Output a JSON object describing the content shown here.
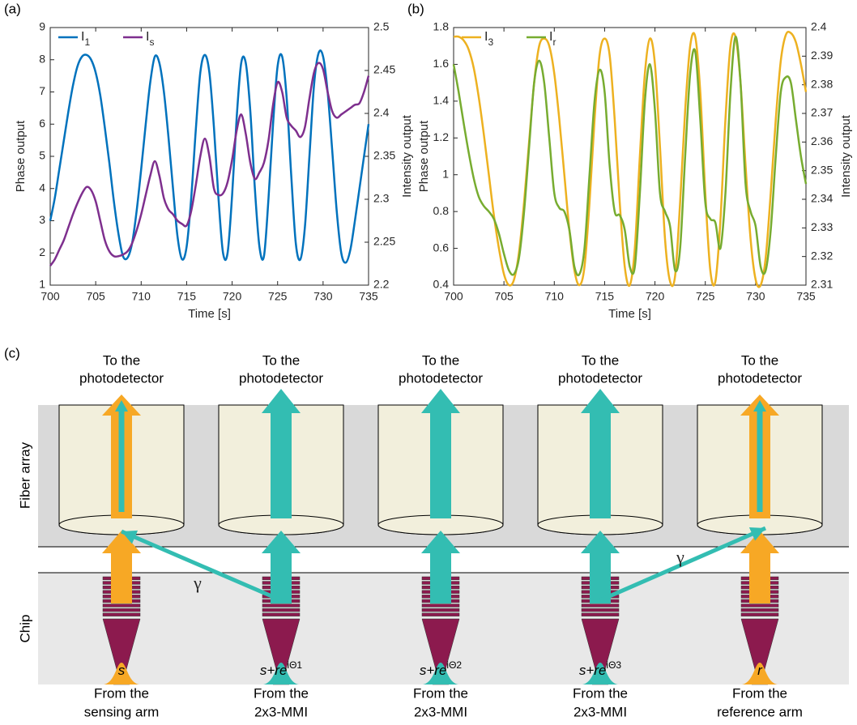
{
  "chart_data": [
    {
      "type": "line",
      "panel_label": "(a)",
      "x_label": "Time [s]",
      "y_label": "Phase output",
      "y2_label": "Intensity output",
      "x": [
        700,
        700.5,
        701,
        701.5,
        702,
        702.5,
        703,
        703.5,
        704,
        704.5,
        705,
        705.5,
        706,
        706.5,
        707,
        707.5,
        708,
        708.5,
        709,
        709.5,
        710,
        710.5,
        711,
        711.5,
        712,
        712.5,
        713,
        713.5,
        714,
        714.5,
        715,
        715.5,
        716,
        716.5,
        717,
        717.5,
        718,
        718.5,
        719,
        719.5,
        720,
        720.5,
        721,
        721.5,
        722,
        722.5,
        723,
        723.5,
        724,
        724.5,
        725,
        725.5,
        726,
        726.5,
        727,
        727.5,
        728,
        728.5,
        729,
        729.5,
        730,
        730.5,
        731,
        731.5,
        732,
        732.5,
        733,
        733.5,
        734,
        734.5,
        735
      ],
      "series": [
        {
          "name": "I1",
          "color": "#0072bd",
          "values": [
            3.0,
            3.7,
            4.6,
            5.5,
            6.4,
            7.2,
            7.8,
            8.1,
            8.15,
            8.0,
            7.6,
            6.9,
            5.9,
            4.8,
            3.6,
            2.6,
            1.9,
            1.85,
            2.3,
            3.3,
            4.6,
            6.0,
            7.3,
            8.1,
            7.9,
            7.0,
            5.6,
            4.0,
            2.5,
            1.8,
            2.2,
            3.7,
            5.8,
            7.6,
            8.15,
            7.6,
            5.9,
            3.7,
            2.0,
            2.0,
            3.8,
            6.2,
            7.9,
            7.9,
            6.4,
            4.0,
            2.2,
            1.9,
            3.7,
            6.0,
            7.8,
            8.1,
            6.8,
            4.4,
            2.3,
            1.8,
            2.8,
            5.0,
            7.2,
            8.2,
            8.1,
            7.0,
            5.2,
            3.3,
            2.0,
            1.7,
            2.1,
            3.0,
            4.0,
            5.0,
            6.0
          ]
        },
        {
          "name": "Is",
          "color": "#7e2f8e",
          "values": [
            1.6,
            1.8,
            2.1,
            2.4,
            2.8,
            3.2,
            3.55,
            3.85,
            4.05,
            3.95,
            3.6,
            3.0,
            2.4,
            2.05,
            1.9,
            1.9,
            1.95,
            2.05,
            2.3,
            2.7,
            3.2,
            3.8,
            4.4,
            4.85,
            4.4,
            3.7,
            3.35,
            3.2,
            3.0,
            2.9,
            2.85,
            3.3,
            4.1,
            5.0,
            5.55,
            5.0,
            4.0,
            3.8,
            3.85,
            4.2,
            4.9,
            5.8,
            6.3,
            5.7,
            4.8,
            4.3,
            4.5,
            4.8,
            5.5,
            6.6,
            7.3,
            7.0,
            6.2,
            5.95,
            5.8,
            5.6,
            5.9,
            6.8,
            7.6,
            7.9,
            7.7,
            7.0,
            6.4,
            6.2,
            6.3,
            6.4,
            6.5,
            6.6,
            6.65,
            7.0,
            7.5
          ]
        }
      ],
      "xlim": [
        700,
        735
      ],
      "xticks": [
        700,
        705,
        710,
        715,
        720,
        725,
        730,
        735
      ],
      "ylim": [
        1,
        9
      ],
      "yticks": [
        1,
        2,
        3,
        4,
        5,
        6,
        7,
        8,
        9
      ],
      "y2lim": [
        2.2,
        2.5
      ],
      "y2ticks": [
        2.2,
        2.25,
        2.3,
        2.35,
        2.4,
        2.45,
        2.5
      ],
      "legend": "upper left"
    },
    {
      "type": "line",
      "panel_label": "(b)",
      "x_label": "Time [s]",
      "y_label": "Phase output",
      "y2_label": "Intensity output",
      "x": [
        700,
        700.5,
        701,
        701.5,
        702,
        702.5,
        703,
        703.5,
        704,
        704.5,
        705,
        705.5,
        706,
        706.5,
        707,
        707.5,
        708,
        708.5,
        709,
        709.5,
        710,
        710.5,
        711,
        711.5,
        712,
        712.5,
        713,
        713.5,
        714,
        714.5,
        715,
        715.5,
        716,
        716.5,
        717,
        717.5,
        718,
        718.5,
        719,
        719.5,
        720,
        720.5,
        721,
        721.5,
        722,
        722.5,
        723,
        723.5,
        724,
        724.5,
        725,
        725.5,
        726,
        726.5,
        727,
        727.5,
        728,
        728.5,
        729,
        729.5,
        730,
        730.5,
        731,
        731.5,
        732,
        732.5,
        733,
        733.5,
        734,
        734.5,
        735
      ],
      "series": [
        {
          "name": "I3",
          "color": "#edb120",
          "values": [
            1.75,
            1.75,
            1.73,
            1.68,
            1.58,
            1.42,
            1.22,
            1.0,
            0.78,
            0.6,
            0.46,
            0.4,
            0.43,
            0.58,
            0.85,
            1.18,
            1.5,
            1.7,
            1.74,
            1.7,
            1.55,
            1.3,
            1.0,
            0.7,
            0.48,
            0.4,
            0.5,
            0.85,
            1.3,
            1.65,
            1.74,
            1.65,
            1.3,
            0.85,
            0.5,
            0.4,
            0.6,
            1.1,
            1.55,
            1.74,
            1.6,
            1.15,
            0.65,
            0.42,
            0.45,
            0.85,
            1.35,
            1.7,
            1.75,
            1.45,
            0.9,
            0.48,
            0.42,
            0.75,
            1.3,
            1.7,
            1.75,
            1.5,
            1.05,
            0.65,
            0.43,
            0.4,
            0.55,
            0.9,
            1.3,
            1.62,
            1.76,
            1.77,
            1.72,
            1.6,
            1.45
          ]
        },
        {
          "name": "Ir",
          "color": "#77ac30",
          "values": [
            1.6,
            1.45,
            1.28,
            1.12,
            0.98,
            0.88,
            0.83,
            0.8,
            0.76,
            0.68,
            0.57,
            0.48,
            0.46,
            0.55,
            0.8,
            1.15,
            1.5,
            1.62,
            1.5,
            1.2,
            0.9,
            0.82,
            0.8,
            0.7,
            0.5,
            0.46,
            0.6,
            1.0,
            1.4,
            1.57,
            1.45,
            1.05,
            0.8,
            0.78,
            0.7,
            0.5,
            0.5,
            0.9,
            1.4,
            1.6,
            1.35,
            0.9,
            0.8,
            0.72,
            0.48,
            0.6,
            1.1,
            1.55,
            1.67,
            1.3,
            0.85,
            0.76,
            0.74,
            0.6,
            0.9,
            1.45,
            1.75,
            1.5,
            0.95,
            0.8,
            0.72,
            0.5,
            0.48,
            0.7,
            1.1,
            1.45,
            1.53,
            1.5,
            1.3,
            1.1,
            0.95
          ]
        }
      ],
      "xlim": [
        700,
        735
      ],
      "xticks": [
        700,
        705,
        710,
        715,
        720,
        725,
        730,
        735
      ],
      "ylim": [
        0.4,
        1.8
      ],
      "yticks": [
        0.4,
        0.6,
        0.8,
        1,
        1.2,
        1.4,
        1.6,
        1.8
      ],
      "y2lim": [
        2.31,
        2.4
      ],
      "y2ticks": [
        2.31,
        2.32,
        2.33,
        2.34,
        2.35,
        2.36,
        2.37,
        2.38,
        2.39,
        2.4
      ],
      "legend": "upper left"
    }
  ],
  "diagram": {
    "panel_label": "(c)",
    "fiber_array_label": "Fiber array",
    "chip_label": "Chip",
    "gamma": [
      "γ",
      "γ"
    ],
    "columns": [
      {
        "top": [
          "To the",
          "photodetector"
        ],
        "input": "s",
        "bottom": [
          "From the",
          "sensing arm"
        ]
      },
      {
        "top": [
          "To the",
          "photodetector"
        ],
        "input": "s+re",
        "input_sup": "iΘ1",
        "bottom": [
          "From the",
          "2x3-MMI"
        ]
      },
      {
        "top": [
          "To the",
          "photodetector"
        ],
        "input": "s+re",
        "input_sup": "iΘ2",
        "bottom": [
          "From the",
          "2x3-MMI"
        ]
      },
      {
        "top": [
          "To the",
          "photodetector"
        ],
        "input": "s+re",
        "input_sup": "iΘ3",
        "bottom": [
          "From the",
          "2x3-MMI"
        ]
      },
      {
        "top": [
          "To the",
          "photodetector"
        ],
        "input": "r",
        "bottom": [
          "From the",
          "reference arm"
        ]
      }
    ]
  }
}
